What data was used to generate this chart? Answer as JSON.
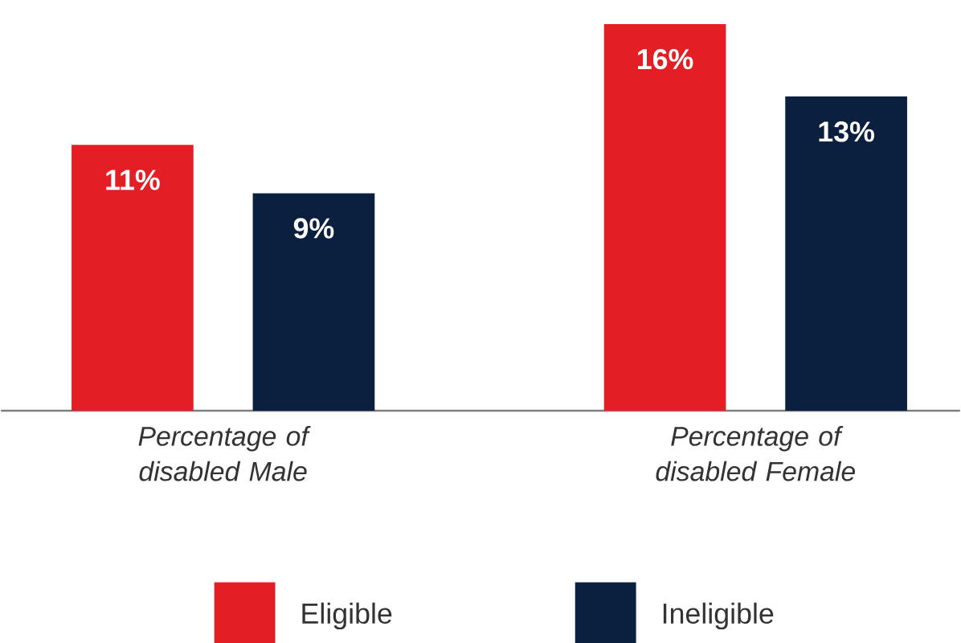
{
  "chart_data": {
    "type": "bar",
    "categories": [
      "Percentage of disabled Male",
      "Percentage of disabled Female"
    ],
    "series": [
      {
        "name": "Eligible",
        "color": "#e31e24",
        "values": [
          11,
          16
        ],
        "value_labels": [
          "11%",
          "16%"
        ]
      },
      {
        "name": "Ineligible",
        "color": "#0b1f3f",
        "values": [
          9,
          13
        ],
        "value_labels": [
          "9%",
          "13%"
        ]
      }
    ],
    "legend": "bottom"
  }
}
